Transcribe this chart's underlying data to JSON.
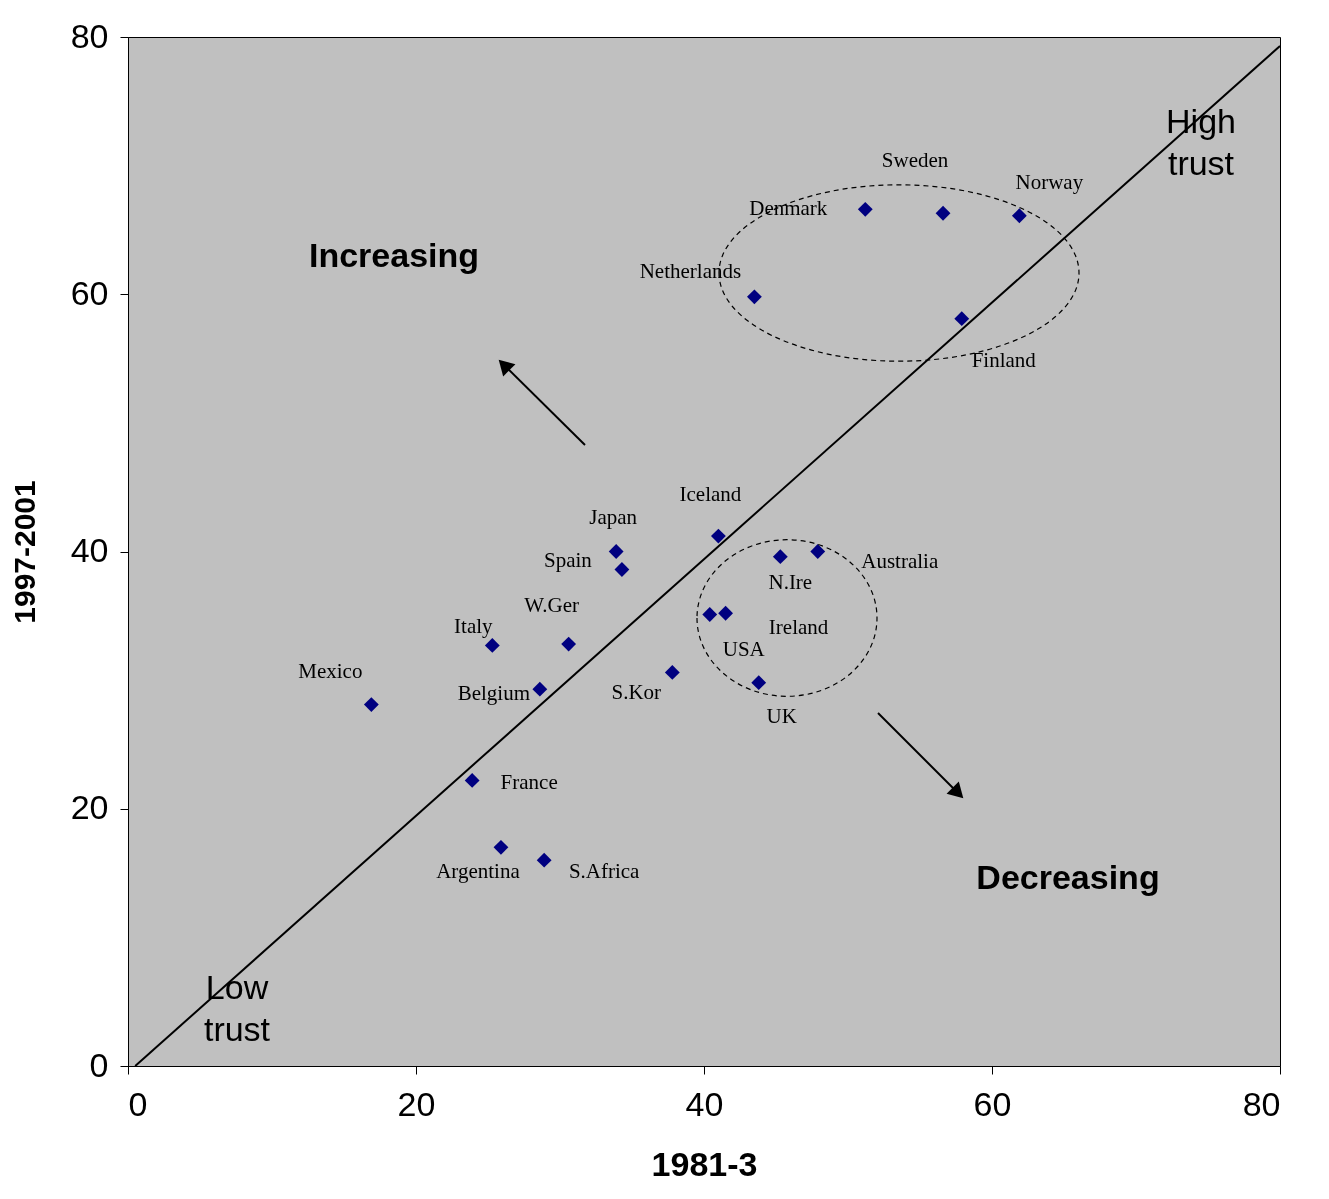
{
  "chart_data": {
    "type": "scatter",
    "xlabel": "1981-3",
    "ylabel": "1997-2001",
    "xlim": [
      0,
      80
    ],
    "ylim": [
      0,
      80
    ],
    "xticks": [
      0,
      20,
      40,
      60,
      80
    ],
    "yticks": [
      0,
      20,
      40,
      60,
      80
    ],
    "grid": false,
    "marker": "diamond",
    "series": [
      {
        "color": "#000080",
        "x": [
          51.2,
          56.6,
          61.9,
          43.5,
          57.9,
          41.0,
          33.9,
          34.3,
          47.9,
          45.3,
          40.4,
          41.5,
          43.8,
          37.8,
          30.6,
          25.3,
          28.6,
          16.9,
          23.9,
          25.9,
          28.9
        ],
        "values": [
          66.6,
          66.3,
          66.1,
          59.8,
          58.1,
          41.2,
          40.0,
          38.6,
          40.0,
          39.6,
          35.1,
          35.2,
          29.8,
          30.6,
          32.8,
          32.7,
          29.3,
          28.1,
          22.2,
          17.0,
          16.0
        ]
      },
      {
        "type": "line",
        "marker": "none",
        "color": "#000000",
        "x": [
          0.5,
          80
        ],
        "values": [
          0,
          79.3
        ]
      }
    ],
    "annotations": [
      {
        "text": "Denmark",
        "x": 51.2,
        "y": 66.6
      },
      {
        "text": "Sweden",
        "x": 56.6,
        "y": 66.3
      },
      {
        "text": "Norway",
        "x": 61.9,
        "y": 66.1
      },
      {
        "text": "Netherlands",
        "x": 43.5,
        "y": 59.8
      },
      {
        "text": "Finland",
        "x": 57.9,
        "y": 58.1
      },
      {
        "text": "Iceland",
        "x": 41.0,
        "y": 41.2
      },
      {
        "text": "Japan",
        "x": 33.9,
        "y": 40.0
      },
      {
        "text": "Spain",
        "x": 34.3,
        "y": 38.6
      },
      {
        "text": "Australia",
        "x": 47.9,
        "y": 40.0
      },
      {
        "text": "N.Ire",
        "x": 45.3,
        "y": 39.6
      },
      {
        "text": "USA",
        "x": 40.4,
        "y": 35.1
      },
      {
        "text": "Ireland",
        "x": 41.5,
        "y": 35.2
      },
      {
        "text": "UK",
        "x": 43.8,
        "y": 29.8
      },
      {
        "text": "S.Kor",
        "x": 37.8,
        "y": 30.6
      },
      {
        "text": "W.Ger",
        "x": 30.6,
        "y": 32.8
      },
      {
        "text": "Italy",
        "x": 25.3,
        "y": 32.7
      },
      {
        "text": "Belgium",
        "x": 28.6,
        "y": 29.3
      },
      {
        "text": "Mexico",
        "x": 16.9,
        "y": 28.1
      },
      {
        "text": "France",
        "x": 23.9,
        "y": 22.2
      },
      {
        "text": "Argentina",
        "x": 25.9,
        "y": 17.0
      },
      {
        "text": "S.Africa",
        "x": 28.9,
        "y": 16.0
      },
      "Increasing",
      "Decreasing",
      "High trust",
      "Low trust"
    ]
  }
}
